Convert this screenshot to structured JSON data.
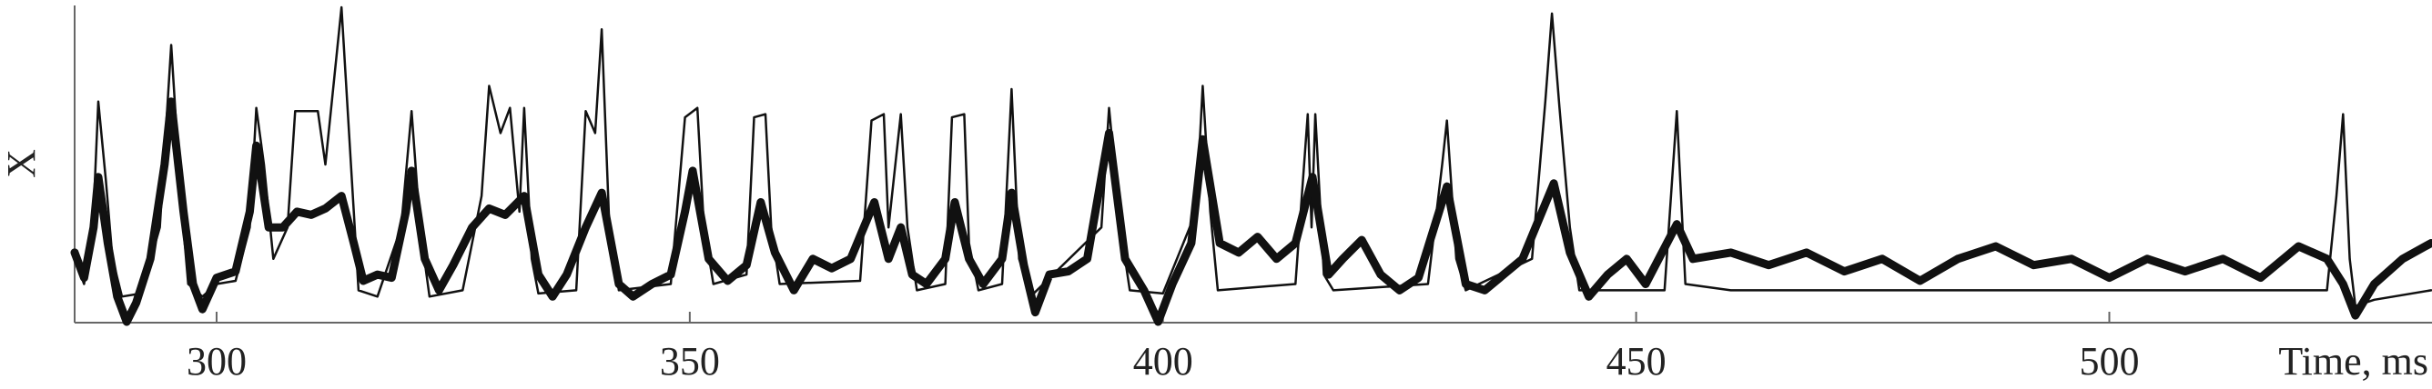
{
  "chart_data": {
    "type": "line",
    "x_label": "Time, ms",
    "y_label": "X",
    "xlim": [
      285,
      534
    ],
    "ylim": [
      0,
      1
    ],
    "xticks": [
      300,
      350,
      400,
      450,
      500
    ],
    "series": [
      {
        "color": "#111111",
        "width": 2.5,
        "x": [
          285,
          286,
          287,
          287.5,
          288.3,
          289,
          290,
          292,
          294,
          295.2,
          296.2,
          297,
          298.5,
          300,
          302,
          303.5,
          304.2,
          305,
          306,
          307.5,
          308.3,
          310.7,
          311.5,
          313.2,
          314,
          315,
          317,
          319.5,
          320.6,
          321.5,
          322.5,
          326,
          328,
          328.8,
          330,
          331,
          332,
          332.5,
          333.3,
          334,
          338,
          339,
          340,
          340.7,
          341.5,
          342.5,
          348,
          349.5,
          350.8,
          351.5,
          352.5,
          356,
          356.8,
          358,
          358.6,
          359.5,
          368,
          369.2,
          370.5,
          371,
          372.3,
          373,
          374,
          377,
          377.7,
          379,
          379.5,
          380.5,
          383,
          384,
          384.8,
          386,
          393.5,
          394.3,
          395.5,
          396.5,
          400,
          403.5,
          404.2,
          405,
          405.8,
          414,
          415.3,
          415.7,
          416.1,
          417,
          418,
          428,
          429.5,
          430,
          431,
          432,
          439,
          440.4,
          441.1,
          441.9,
          443,
          444,
          453,
          454.3,
          455.2,
          460,
          480,
          500,
          523,
          524,
          524.7,
          525.4,
          526,
          528,
          534
        ],
        "values": [
          0.2,
          0.12,
          0.35,
          0.7,
          0.45,
          0.2,
          0.08,
          0.09,
          0.3,
          0.88,
          0.4,
          0.12,
          0.08,
          0.12,
          0.13,
          0.3,
          0.68,
          0.5,
          0.2,
          0.3,
          0.67,
          0.67,
          0.5,
          1.0,
          0.6,
          0.1,
          0.08,
          0.3,
          0.67,
          0.3,
          0.08,
          0.1,
          0.4,
          0.75,
          0.6,
          0.68,
          0.35,
          0.68,
          0.2,
          0.09,
          0.1,
          0.67,
          0.6,
          0.93,
          0.3,
          0.1,
          0.12,
          0.65,
          0.68,
          0.3,
          0.12,
          0.15,
          0.65,
          0.66,
          0.3,
          0.12,
          0.13,
          0.64,
          0.66,
          0.3,
          0.66,
          0.3,
          0.1,
          0.12,
          0.65,
          0.66,
          0.25,
          0.1,
          0.12,
          0.74,
          0.2,
          0.08,
          0.3,
          0.68,
          0.3,
          0.1,
          0.09,
          0.35,
          0.75,
          0.35,
          0.1,
          0.12,
          0.66,
          0.3,
          0.66,
          0.15,
          0.1,
          0.12,
          0.5,
          0.64,
          0.2,
          0.1,
          0.2,
          0.7,
          0.98,
          0.68,
          0.3,
          0.1,
          0.1,
          0.67,
          0.12,
          0.1,
          0.1,
          0.1,
          0.1,
          0.4,
          0.66,
          0.2,
          0.05,
          0.07,
          0.1
        ]
      },
      {
        "color": "#111111",
        "width": 9,
        "x": [
          285,
          286,
          287,
          287.5,
          288.5,
          289.5,
          290.5,
          291.5,
          293,
          294.5,
          295.2,
          296.5,
          297.5,
          298.5,
          300,
          302,
          303.5,
          304.2,
          305.5,
          307,
          308.5,
          310,
          311.5,
          313.2,
          314.5,
          315.5,
          317,
          318.5,
          320,
          320.6,
          322,
          323.5,
          325,
          327,
          328.8,
          330.5,
          332.5,
          334,
          335.5,
          337,
          339,
          340.7,
          342.5,
          344,
          346,
          348,
          349.5,
          350.3,
          352,
          354,
          356,
          357.5,
          359,
          361,
          363,
          365,
          367,
          369.5,
          371,
          372.3,
          373.5,
          375,
          377,
          378,
          379.5,
          381,
          383,
          384,
          385.3,
          386.5,
          388,
          390,
          392,
          394.3,
          396,
          398,
          399.5,
          401,
          403,
          404.2,
          406,
          408,
          410,
          412,
          414,
          415.8,
          417.5,
          419,
          421,
          423,
          425,
          427,
          430,
          432,
          434,
          436,
          438,
          441.3,
          443,
          445,
          447,
          449,
          451,
          454.3,
          456,
          460,
          464,
          468,
          472,
          476,
          480,
          484,
          488,
          492,
          496,
          500,
          504,
          508,
          512,
          516,
          520,
          523,
          524.7,
          526,
          528,
          531,
          534
        ],
        "values": [
          0.22,
          0.14,
          0.3,
          0.46,
          0.25,
          0.08,
          0.0,
          0.06,
          0.2,
          0.5,
          0.7,
          0.35,
          0.12,
          0.04,
          0.14,
          0.16,
          0.35,
          0.56,
          0.3,
          0.3,
          0.35,
          0.34,
          0.36,
          0.4,
          0.25,
          0.13,
          0.15,
          0.14,
          0.35,
          0.48,
          0.2,
          0.1,
          0.18,
          0.3,
          0.36,
          0.34,
          0.4,
          0.15,
          0.08,
          0.15,
          0.3,
          0.41,
          0.12,
          0.08,
          0.12,
          0.15,
          0.35,
          0.48,
          0.2,
          0.13,
          0.18,
          0.38,
          0.22,
          0.1,
          0.2,
          0.17,
          0.2,
          0.38,
          0.2,
          0.3,
          0.15,
          0.12,
          0.2,
          0.38,
          0.2,
          0.12,
          0.2,
          0.41,
          0.18,
          0.03,
          0.15,
          0.16,
          0.2,
          0.6,
          0.2,
          0.1,
          0.0,
          0.12,
          0.25,
          0.58,
          0.25,
          0.22,
          0.27,
          0.2,
          0.25,
          0.46,
          0.15,
          0.2,
          0.26,
          0.15,
          0.1,
          0.14,
          0.43,
          0.12,
          0.1,
          0.15,
          0.2,
          0.44,
          0.22,
          0.08,
          0.15,
          0.2,
          0.12,
          0.31,
          0.2,
          0.22,
          0.18,
          0.22,
          0.16,
          0.2,
          0.13,
          0.2,
          0.24,
          0.18,
          0.2,
          0.14,
          0.2,
          0.16,
          0.2,
          0.14,
          0.24,
          0.2,
          0.12,
          0.02,
          0.12,
          0.2,
          0.25
        ]
      }
    ]
  }
}
